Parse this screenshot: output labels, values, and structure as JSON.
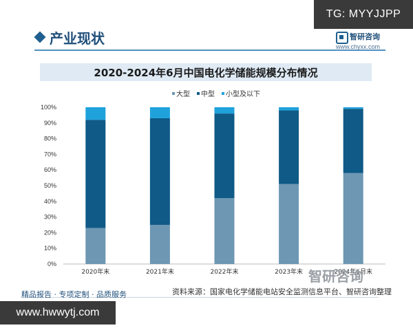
{
  "corner_tag": "TG: MYYJJPP",
  "header": {
    "title": "产业现状",
    "logo_text": "智研咨询",
    "logo_url": "www.chyxx.com"
  },
  "chart_data": {
    "type": "bar",
    "stacked": true,
    "title": "2020-2024年6月中国电化学储能规模分布情况",
    "categories": [
      "2020年末",
      "2021年末",
      "2022年末",
      "2023年末",
      "2024年6月末"
    ],
    "series": [
      {
        "name": "大型",
        "values": [
          23,
          25,
          42,
          51,
          58
        ],
        "color": "#6d97b3"
      },
      {
        "name": "中型",
        "values": [
          69,
          68,
          54,
          47,
          41
        ],
        "color": "#0f5a87"
      },
      {
        "name": "小型及以下",
        "values": [
          8,
          7,
          4,
          2,
          1
        ],
        "color": "#1fa2dc"
      }
    ],
    "yticks": [
      "0%",
      "10%",
      "20%",
      "30%",
      "40%",
      "50%",
      "60%",
      "70%",
      "80%",
      "90%",
      "100%"
    ],
    "ylim": [
      0,
      100
    ],
    "legend_position": "top-center"
  },
  "source": "资料来源：国家电化学储能电站安全监测信息平台、智研咨询整理",
  "watermark": "智研咨询",
  "footer_left": "精品报告 · 专项定制 · 品质服务",
  "url_box": "www.hwwytj.com"
}
